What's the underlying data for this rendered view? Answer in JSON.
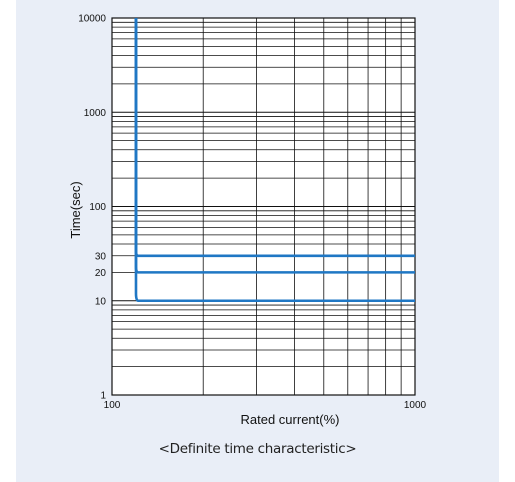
{
  "chart_data": {
    "type": "line",
    "title": "",
    "caption": "<Definite time characteristic>",
    "xlabel": "Rated current(%)",
    "ylabel": "Time(sec)",
    "x_scale": "log",
    "y_scale": "log",
    "xlim": [
      100,
      1000
    ],
    "ylim": [
      1,
      10000
    ],
    "x_ticks": [
      "100",
      "1000"
    ],
    "y_ticks": [
      "1",
      "10",
      "20",
      "30",
      "100",
      "1000",
      "10000"
    ],
    "grid": true,
    "series_color": "#1f77c4",
    "series": [
      {
        "x": [
          120,
          120,
          122,
          1000
        ],
        "y": [
          10000,
          12,
          10,
          10
        ]
      },
      {
        "x": [
          120,
          120,
          122,
          1000
        ],
        "y": [
          10000,
          23,
          20,
          20
        ]
      },
      {
        "x": [
          120,
          120,
          122,
          1000
        ],
        "y": [
          10000,
          34,
          30,
          30
        ]
      }
    ]
  }
}
